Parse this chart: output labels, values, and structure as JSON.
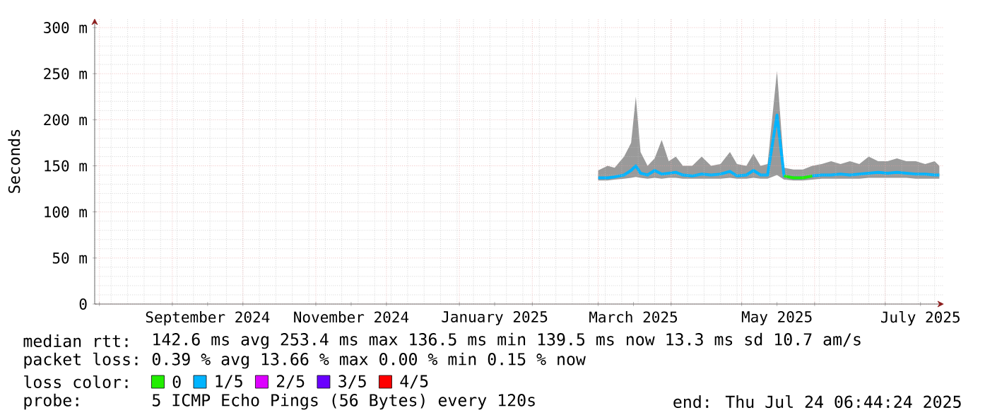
{
  "chart_data": {
    "type": "line",
    "ylabel": "Seconds",
    "xlim": [
      "2024-07-30",
      "2025-07-26"
    ],
    "ylim": [
      0,
      310
    ],
    "yticks": [
      {
        "value": 0,
        "label": "0"
      },
      {
        "value": 50,
        "label": "50 m"
      },
      {
        "value": 100,
        "label": "100 m"
      },
      {
        "value": 150,
        "label": "150 m"
      },
      {
        "value": 200,
        "label": "200 m"
      },
      {
        "value": 250,
        "label": "250 m"
      },
      {
        "value": 300,
        "label": "300 m"
      }
    ],
    "xticks": [
      {
        "value": "2024-08-01",
        "label": null
      },
      {
        "value": "2024-09-01",
        "label": null
      },
      {
        "value": "2024-09-16",
        "label": "September 2024"
      },
      {
        "value": "2024-10-01",
        "label": null
      },
      {
        "value": "2024-11-01",
        "label": null
      },
      {
        "value": "2024-11-16",
        "label": "November 2024"
      },
      {
        "value": "2024-12-01",
        "label": null
      },
      {
        "value": "2025-01-01",
        "label": null
      },
      {
        "value": "2025-01-16",
        "label": "January 2025"
      },
      {
        "value": "2025-02-01",
        "label": null
      },
      {
        "value": "2025-03-01",
        "label": null
      },
      {
        "value": "2025-03-16",
        "label": "March 2025"
      },
      {
        "value": "2025-04-01",
        "label": null
      },
      {
        "value": "2025-05-01",
        "label": null
      },
      {
        "value": "2025-05-16",
        "label": "May 2025"
      },
      {
        "value": "2025-06-01",
        "label": null
      },
      {
        "value": "2025-07-01",
        "label": null
      },
      {
        "value": "2025-07-16",
        "label": "July 2025"
      }
    ],
    "grid": true,
    "legend": "bottom",
    "legend_title": "loss color:",
    "line_style": "solid",
    "series": [
      {
        "name": "0",
        "color": "#22ee00",
        "x": [
          "2025-05-19",
          "2025-05-23",
          "2025-05-27",
          "2025-05-31"
        ],
        "values": [
          139,
          137,
          137,
          139
        ]
      },
      {
        "name": "1/5",
        "color": "#00b4ff",
        "x": [
          "2025-03-01",
          "2025-03-05",
          "2025-03-08",
          "2025-03-12",
          "2025-03-15",
          "2025-03-17",
          "2025-03-19",
          "2025-03-22",
          "2025-03-25",
          "2025-03-28",
          "2025-03-31",
          "2025-04-03",
          "2025-04-06",
          "2025-04-10",
          "2025-04-14",
          "2025-04-18",
          "2025-04-22",
          "2025-04-26",
          "2025-04-29",
          "2025-05-03",
          "2025-05-06",
          "2025-05-09",
          "2025-05-12",
          "2025-05-16",
          "2025-05-19",
          "2025-05-23",
          "2025-05-27",
          "2025-05-31",
          "2025-06-04",
          "2025-06-08",
          "2025-06-12",
          "2025-06-16",
          "2025-06-20",
          "2025-06-24",
          "2025-06-28",
          "2025-07-02",
          "2025-07-06",
          "2025-07-10",
          "2025-07-14",
          "2025-07-18",
          "2025-07-22",
          "2025-07-24"
        ],
        "values": [
          137,
          137,
          138,
          140,
          145,
          150,
          142,
          140,
          145,
          141,
          142,
          143,
          140,
          139,
          141,
          140,
          141,
          144,
          139,
          140,
          145,
          140,
          140,
          205,
          139,
          137,
          137,
          139,
          140,
          140,
          141,
          140,
          141,
          142,
          143,
          142,
          143,
          142,
          141,
          141,
          140,
          140
        ],
        "lower": [
          134,
          134,
          135,
          136,
          137,
          138,
          137,
          136,
          137,
          136,
          137,
          137,
          136,
          136,
          136,
          136,
          136,
          137,
          136,
          136,
          137,
          136,
          136,
          140,
          135,
          134,
          134,
          135,
          136,
          136,
          136,
          136,
          136,
          137,
          137,
          137,
          137,
          137,
          136,
          136,
          136,
          136
        ],
        "upper": [
          145,
          150,
          148,
          160,
          175,
          225,
          165,
          150,
          158,
          178,
          155,
          160,
          150,
          150,
          160,
          150,
          152,
          165,
          152,
          150,
          163,
          150,
          152,
          253,
          148,
          146,
          146,
          150,
          152,
          155,
          152,
          155,
          152,
          160,
          155,
          155,
          158,
          155,
          155,
          152,
          155,
          150
        ]
      },
      {
        "name": "2/5",
        "color": "#dd00ff"
      },
      {
        "name": "3/5",
        "color": "#6a00ff"
      },
      {
        "name": "4/5",
        "color": "#ff0000"
      }
    ],
    "annotations": [
      "median rtt:",
      "142.6 ms avg  253.4 ms max  136.5 ms min  139.5 ms now  13.3 ms sd  10.7   am/s",
      "packet loss:",
      "0.39 % avg  13.66 % max  0.00 % min  0.15 % now",
      "probe:",
      "5 ICMP Echo Pings (56 Bytes) every 120s",
      "end: Thu Jul 24 06:44:24 2025"
    ]
  }
}
